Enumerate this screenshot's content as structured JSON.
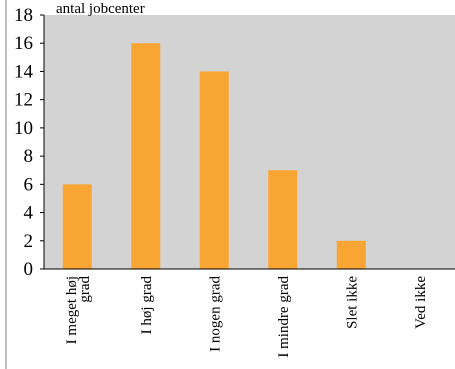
{
  "chart_data": {
    "type": "bar",
    "ylabel": "antal jobcenter",
    "categories": [
      [
        "I meget høj",
        "grad"
      ],
      [
        "I høj grad"
      ],
      [
        "I nogen grad"
      ],
      [
        "I mindre grad"
      ],
      [
        "Slet ikke"
      ],
      [
        "Ved ikke"
      ]
    ],
    "values": [
      6,
      16,
      14,
      7,
      2,
      0
    ],
    "ylim": [
      0,
      18
    ],
    "yticks": [
      0,
      2,
      4,
      6,
      8,
      10,
      12,
      14,
      16,
      18
    ],
    "grid": false,
    "legend": "none",
    "colors": {
      "bar": "#F9A533",
      "plot_background": "#D3D3D3",
      "axis": "#000000",
      "frame": "#808080"
    }
  }
}
